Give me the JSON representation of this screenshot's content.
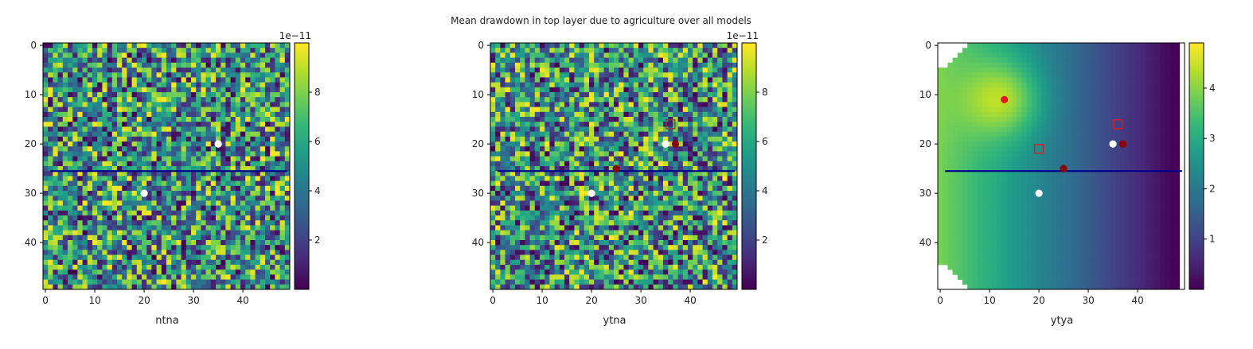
{
  "figure": {
    "title": "Mean drawdown in top layer due to agriculture over all models"
  },
  "colors": {
    "viridis": [
      "#440154",
      "#482878",
      "#3e4989",
      "#31688e",
      "#26828e",
      "#1f9e89",
      "#35b779",
      "#6ece58",
      "#b5de2b",
      "#fde725"
    ],
    "line": "#00008b",
    "white_point": "#ffffff",
    "dark_red_point": "#8b0000",
    "red_point": "#e31a1c",
    "square_marker": "#b22222",
    "square_marker_dark": "#8b3a3a"
  },
  "chart_data": [
    {
      "type": "heatmap",
      "xlabel": "ntna",
      "grid_size": [
        50,
        50
      ],
      "field": "random_uniform",
      "xlim": [
        0,
        49
      ],
      "ylim": [
        49,
        0
      ],
      "x_ticks": [
        "0",
        "10",
        "20",
        "30",
        "40"
      ],
      "y_ticks": [
        "0",
        "10",
        "20",
        "30",
        "40"
      ],
      "colorbar": {
        "ticks": [
          "2",
          "4",
          "6",
          "8"
        ],
        "tick_values": [
          2,
          4,
          6,
          8
        ],
        "range": [
          0,
          10
        ],
        "offset_label": "1e−11"
      },
      "line": {
        "x": [
          1,
          49
        ],
        "y": [
          25.5,
          25.5
        ]
      },
      "points": [
        {
          "x": 35,
          "y": 20,
          "color": "white"
        },
        {
          "x": 20,
          "y": 30,
          "color": "white"
        }
      ],
      "squares": []
    },
    {
      "type": "heatmap",
      "xlabel": "ytna",
      "grid_size": [
        50,
        50
      ],
      "field": "random_uniform",
      "xlim": [
        0,
        49
      ],
      "ylim": [
        49,
        0
      ],
      "x_ticks": [
        "0",
        "10",
        "20",
        "30",
        "40"
      ],
      "y_ticks": [
        "0",
        "10",
        "20",
        "30",
        "40"
      ],
      "colorbar": {
        "ticks": [
          "2",
          "4",
          "6",
          "8"
        ],
        "tick_values": [
          2,
          4,
          6,
          8
        ],
        "range": [
          0,
          10
        ],
        "offset_label": "1e−11"
      },
      "line": {
        "x": [
          1,
          49
        ],
        "y": [
          25.5,
          25.5
        ]
      },
      "points": [
        {
          "x": 35,
          "y": 20,
          "color": "white"
        },
        {
          "x": 20,
          "y": 30,
          "color": "white"
        },
        {
          "x": 37,
          "y": 20,
          "color": "dark_red"
        },
        {
          "x": 25,
          "y": 25,
          "color": "dark_red"
        }
      ],
      "squares": [
        {
          "x": 36,
          "y": 16,
          "color": "dark"
        }
      ]
    },
    {
      "type": "heatmap",
      "xlabel": "ytya",
      "grid_size": [
        50,
        50
      ],
      "field": "gradient",
      "xlim": [
        0,
        49
      ],
      "ylim": [
        49,
        0
      ],
      "x_ticks": [
        "0",
        "10",
        "20",
        "30",
        "40"
      ],
      "y_ticks": [
        "0",
        "10",
        "20",
        "30",
        "40"
      ],
      "colorbar": {
        "ticks": [
          "1",
          "2",
          "3",
          "4"
        ],
        "tick_values": [
          1,
          2,
          3,
          4
        ],
        "range": [
          0,
          4.9
        ],
        "offset_label": ""
      },
      "line": {
        "x": [
          1,
          49
        ],
        "y": [
          25.5,
          25.5
        ]
      },
      "points": [
        {
          "x": 13,
          "y": 11,
          "color": "red"
        },
        {
          "x": 35,
          "y": 20,
          "color": "white"
        },
        {
          "x": 20,
          "y": 30,
          "color": "white"
        },
        {
          "x": 37,
          "y": 20,
          "color": "dark_red"
        },
        {
          "x": 25,
          "y": 25,
          "color": "dark_red"
        }
      ],
      "squares": [
        {
          "x": 36,
          "y": 16,
          "color": "red"
        },
        {
          "x": 20,
          "y": 21,
          "color": "red"
        }
      ]
    }
  ]
}
